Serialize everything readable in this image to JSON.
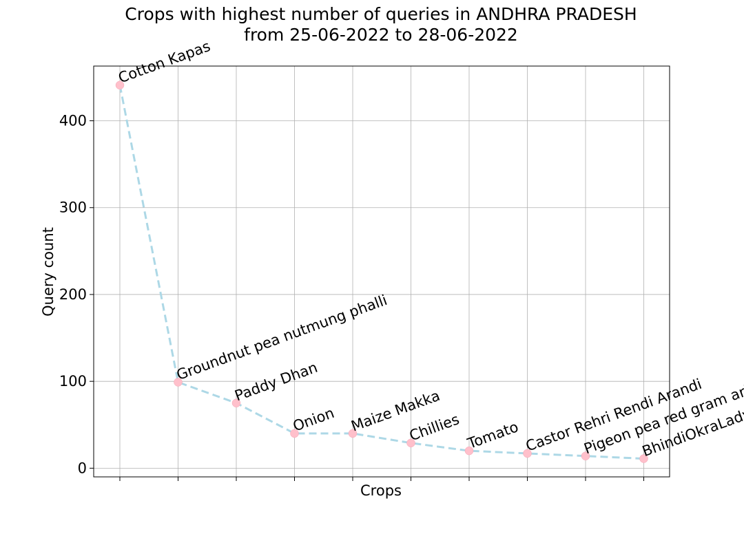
{
  "chart_data": {
    "type": "line",
    "title": [
      "Crops with highest number of queries in ANDHRA PRADESH",
      "from 25-06-2022 to 28-06-2022"
    ],
    "xlabel": "Crops",
    "ylabel": "Query count",
    "categories": [
      "Cotton Kapas",
      "Groundnut pea nutmung phalli",
      "Paddy Dhan",
      "Onion",
      "Maize Makka",
      "Chillies",
      "Tomato",
      "Castor Rehri Rendi Arandi",
      "Pigeon pea red gram arhar tur",
      "BhindiOkraLadysfinger"
    ],
    "values": [
      441,
      99,
      75,
      40,
      40,
      29,
      20,
      17,
      14,
      11
    ],
    "ylim": [
      -10,
      463
    ],
    "yticks": [
      0,
      100,
      200,
      300,
      400
    ],
    "grid": true,
    "legend": "none",
    "line_color": "#add8e6",
    "line_style": "dashed",
    "marker_color": "#ffc0cb"
  }
}
